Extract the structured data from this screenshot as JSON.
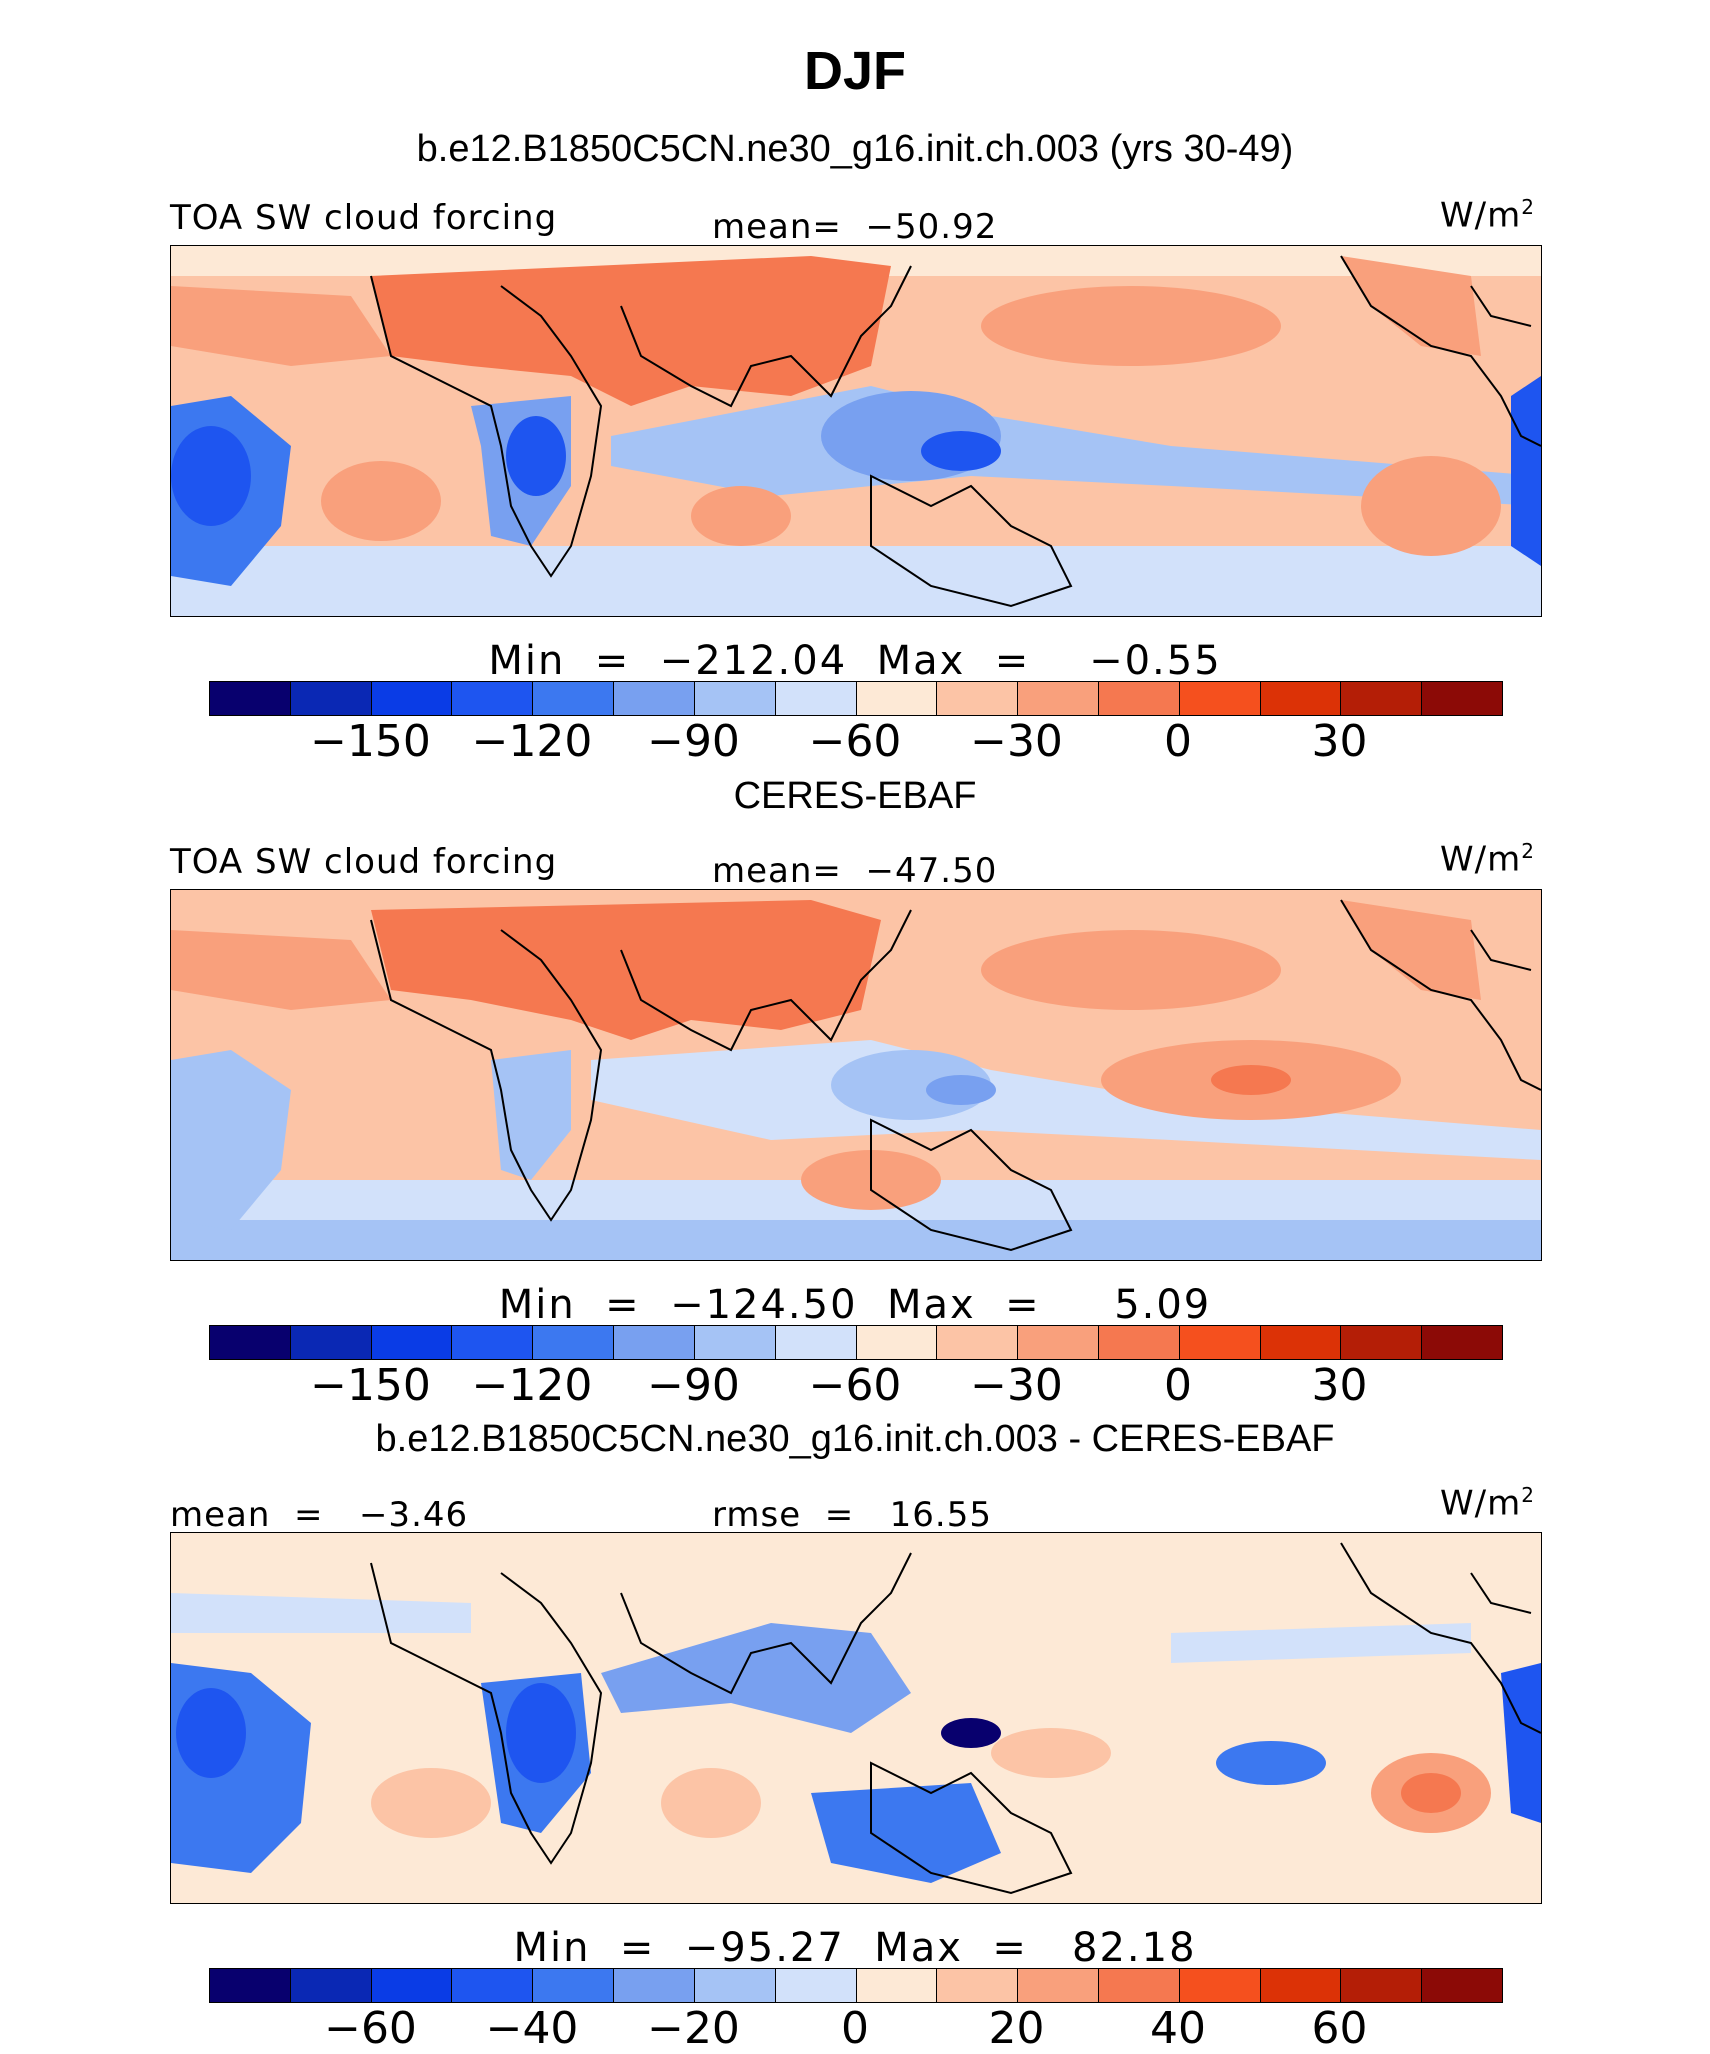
{
  "title": "DJF",
  "colors": [
    "#08006e",
    "#0a28b4",
    "#0a3ce6",
    "#1e55f0",
    "#3c78f0",
    "#78a0f0",
    "#a5c3f5",
    "#d2e1fa",
    "#fde9d6",
    "#fcc4a6",
    "#f9a07c",
    "#f57850",
    "#f5501e",
    "#dc3206",
    "#b41e06",
    "#8c0a06"
  ],
  "panels": [
    {
      "case_title": "b.e12.B1850C5CN.ne30_g16.init.ch.003 (yrs 30-49)",
      "left_label": "TOA SW cloud forcing",
      "center_label": "mean=  −50.92",
      "units": "W/m",
      "units_sup": "2",
      "minmax": "Min  =  −212.04  Max  =    −0.55",
      "ticks": [
        "−150",
        "−120",
        "−90",
        "−60",
        "−30",
        "0",
        "30"
      ]
    },
    {
      "case_title": "CERES-EBAF",
      "left_label": "TOA SW cloud forcing",
      "center_label": "mean=  −47.50",
      "units": "W/m",
      "units_sup": "2",
      "minmax": "Min  =  −124.50  Max  =     5.09",
      "ticks": [
        "−150",
        "−120",
        "−90",
        "−60",
        "−30",
        "0",
        "30"
      ]
    },
    {
      "case_title": "b.e12.B1850C5CN.ne30_g16.init.ch.003 - CERES-EBAF",
      "left_label": "mean  =   −3.46",
      "center_label": "rmse  =   16.55",
      "units": "W/m",
      "units_sup": "2",
      "minmax": "Min  =  −95.27  Max  =   82.18",
      "ticks": [
        "−60",
        "−40",
        "−20",
        "0",
        "20",
        "40",
        "60"
      ]
    }
  ]
}
